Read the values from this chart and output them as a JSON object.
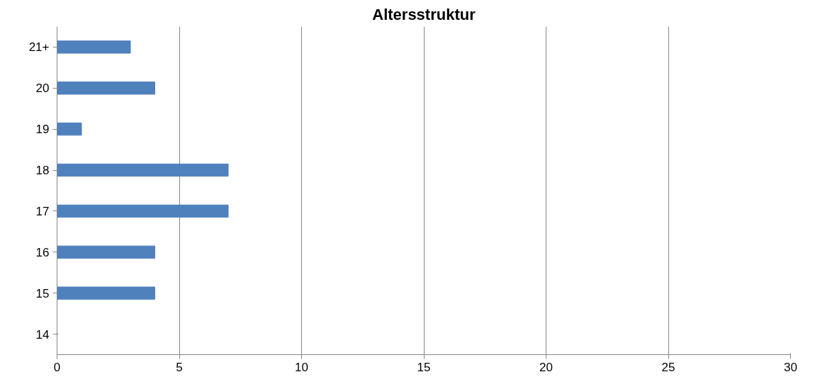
{
  "chart_data": {
    "type": "bar",
    "orientation": "horizontal",
    "title": "Altersstruktur",
    "categories": [
      "21+",
      "20",
      "19",
      "18",
      "17",
      "16",
      "15",
      "14"
    ],
    "values": [
      3,
      4,
      1,
      7,
      7,
      4,
      4,
      null
    ],
    "color": "#4f81bd",
    "xlim": [
      0,
      30
    ],
    "xticks": [
      0,
      5,
      10,
      15,
      20,
      25,
      30
    ],
    "grid": "x"
  }
}
